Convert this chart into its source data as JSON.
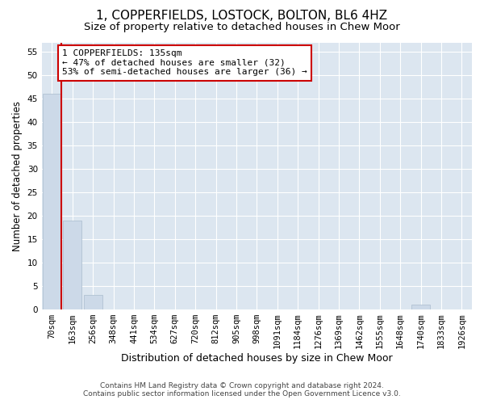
{
  "title": "1, COPPERFIELDS, LOSTOCK, BOLTON, BL6 4HZ",
  "subtitle": "Size of property relative to detached houses in Chew Moor",
  "xlabel": "Distribution of detached houses by size in Chew Moor",
  "ylabel": "Number of detached properties",
  "categories": [
    "70sqm",
    "163sqm",
    "256sqm",
    "348sqm",
    "441sqm",
    "534sqm",
    "627sqm",
    "720sqm",
    "812sqm",
    "905sqm",
    "998sqm",
    "1091sqm",
    "1184sqm",
    "1276sqm",
    "1369sqm",
    "1462sqm",
    "1555sqm",
    "1648sqm",
    "1740sqm",
    "1833sqm",
    "1926sqm"
  ],
  "values": [
    46,
    19,
    3,
    0,
    0,
    0,
    0,
    0,
    0,
    0,
    0,
    0,
    0,
    0,
    0,
    0,
    0,
    0,
    1,
    0,
    0
  ],
  "bar_color": "#ccd9e8",
  "bar_edge_color": "#aabcce",
  "vline_color": "#cc0000",
  "annotation_text": "1 COPPERFIELDS: 135sqm\n← 47% of detached houses are smaller (32)\n53% of semi-detached houses are larger (36) →",
  "annotation_box_facecolor": "#ffffff",
  "annotation_box_edgecolor": "#cc0000",
  "ylim": [
    0,
    57
  ],
  "yticks": [
    0,
    5,
    10,
    15,
    20,
    25,
    30,
    35,
    40,
    45,
    50,
    55
  ],
  "plot_background": "#dce6f0",
  "grid_color": "#ffffff",
  "footer_line1": "Contains HM Land Registry data © Crown copyright and database right 2024.",
  "footer_line2": "Contains public sector information licensed under the Open Government Licence v3.0.",
  "title_fontsize": 11,
  "subtitle_fontsize": 9.5,
  "xlabel_fontsize": 9,
  "ylabel_fontsize": 8.5,
  "tick_fontsize": 7.5,
  "annotation_fontsize": 8,
  "footer_fontsize": 6.5
}
